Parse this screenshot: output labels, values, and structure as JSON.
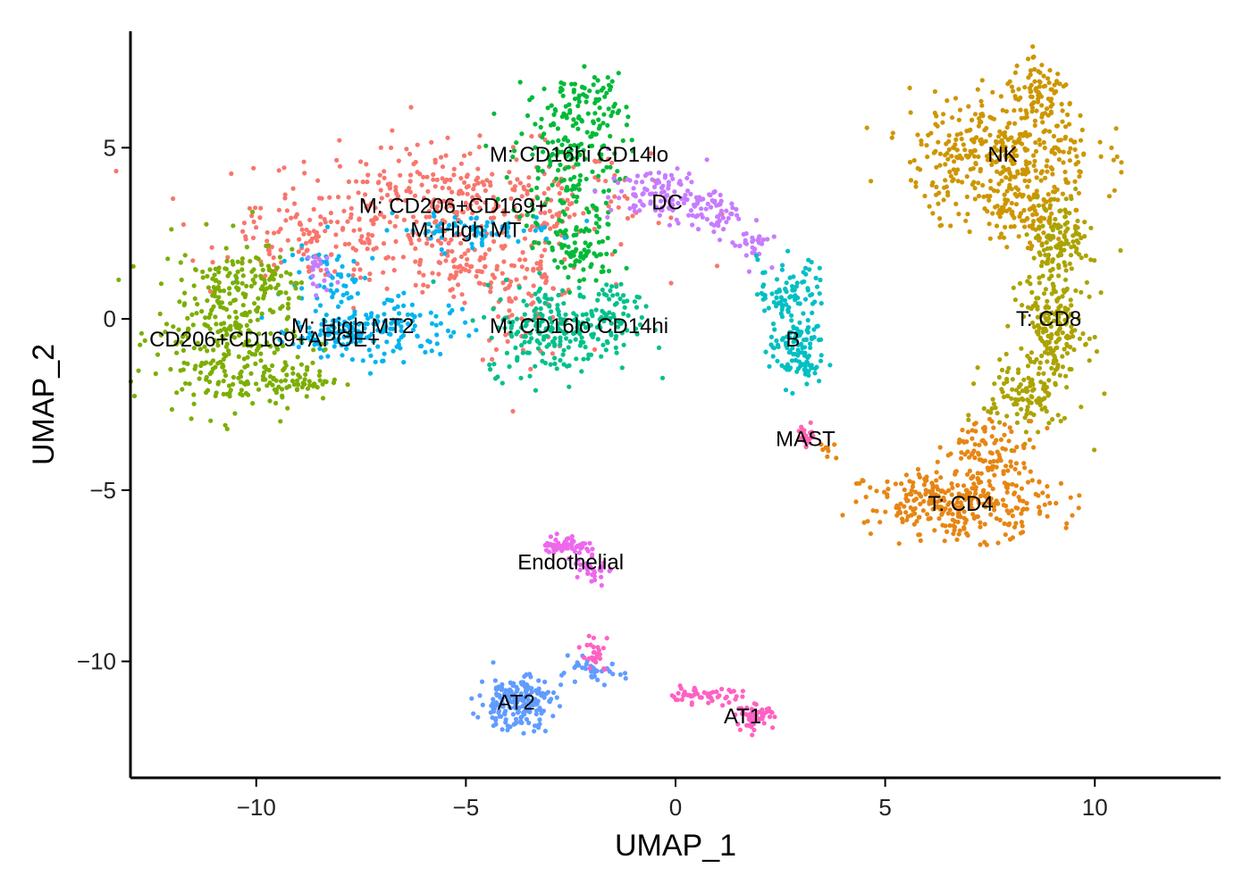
{
  "chart_data": {
    "type": "scatter",
    "title": "",
    "xlabel": "UMAP_1",
    "ylabel": "UMAP_2",
    "xlim": [
      -13,
      13
    ],
    "ylim": [
      -13.4,
      8.4
    ],
    "xticks": [
      -10,
      -5,
      0,
      5,
      10
    ],
    "xtick_labels": [
      "−10",
      "−5",
      "0",
      "5",
      "10"
    ],
    "yticks": [
      5,
      0,
      -5,
      -10
    ],
    "ytick_labels": [
      "5",
      "0",
      "−5",
      "−10"
    ],
    "grid": false,
    "legend": "none",
    "clusters": [
      {
        "label": "M: CD206+CD169+",
        "color": "#F8766D",
        "label_pos": [
          -5.3,
          3.3
        ],
        "regions": [
          [
            -5.3,
            3.3,
            4.2,
            1.6,
            400
          ],
          [
            -8.6,
            2.2,
            2.0,
            1.0,
            90
          ],
          [
            -3.5,
            0.4,
            1.2,
            1.4,
            70
          ],
          [
            -5.0,
            1.3,
            2.0,
            0.8,
            80
          ]
        ]
      },
      {
        "label": "M: CD16hi CD14lo",
        "color": "#00BA38",
        "label_pos": [
          -2.3,
          4.8
        ],
        "regions": [
          [
            -2.6,
            4.8,
            1.2,
            2.0,
            180
          ],
          [
            -2.3,
            2.0,
            0.9,
            1.0,
            90
          ],
          [
            -2.0,
            6.5,
            0.7,
            0.6,
            50
          ]
        ]
      },
      {
        "label": "M: High MT",
        "color": "#00B4F0",
        "label_pos": [
          -5.0,
          2.6
        ],
        "regions": [
          [
            -5.0,
            2.6,
            2.0,
            0.4,
            70
          ],
          [
            -8.0,
            1.0,
            1.2,
            1.0,
            60
          ],
          [
            -6.3,
            -0.3,
            1.4,
            0.8,
            70
          ],
          [
            -8.4,
            -0.6,
            1.0,
            0.4,
            40
          ]
        ]
      },
      {
        "label": "M: High MT2",
        "color": "#00B4F0",
        "label_pos": [
          -7.7,
          -0.2
        ],
        "regions": [
          [
            -7.7,
            -0.4,
            1.2,
            0.6,
            90
          ]
        ]
      },
      {
        "label": "CD206+CD169+APOE+",
        "color": "#7CAE00",
        "label_pos": [
          -9.8,
          -0.6
        ],
        "regions": [
          [
            -10.8,
            -0.4,
            1.5,
            2.2,
            300
          ],
          [
            -9.3,
            -1.8,
            1.2,
            0.5,
            80
          ],
          [
            -10.0,
            1.2,
            1.0,
            0.8,
            60
          ]
        ]
      },
      {
        "label": "M: CD16lo CD14hi",
        "color": "#00C08B",
        "label_pos": [
          -2.3,
          -0.2
        ],
        "regions": [
          [
            -2.8,
            -0.3,
            1.6,
            1.2,
            230
          ],
          [
            -1.5,
            0.4,
            0.6,
            0.6,
            40
          ]
        ]
      },
      {
        "label": "DC",
        "color": "#C77CFF",
        "label_pos": [
          -0.2,
          3.4
        ],
        "regions": [
          [
            -0.3,
            3.6,
            1.2,
            0.7,
            120
          ],
          [
            1.0,
            3.0,
            0.6,
            0.5,
            40
          ],
          [
            1.8,
            2.2,
            0.4,
            0.5,
            30
          ],
          [
            -8.6,
            1.4,
            0.3,
            0.6,
            20
          ]
        ]
      },
      {
        "label": "B",
        "color": "#00BFC4",
        "label_pos": [
          2.8,
          -0.6
        ],
        "regions": [
          [
            2.9,
            -0.9,
            0.6,
            1.0,
            120
          ],
          [
            2.5,
            0.8,
            0.5,
            0.9,
            60
          ],
          [
            3.2,
            1.0,
            0.3,
            0.6,
            20
          ]
        ]
      },
      {
        "label": "MAST",
        "color": "#FF64B0",
        "label_pos": [
          3.1,
          -3.5
        ],
        "regions": [
          [
            3.15,
            -3.4,
            0.2,
            0.3,
            25
          ]
        ]
      },
      {
        "label": "NK",
        "color": "#CD9600",
        "label_pos": [
          7.8,
          4.8
        ],
        "regions": [
          [
            7.8,
            4.8,
            2.0,
            1.6,
            380
          ],
          [
            8.7,
            6.5,
            0.8,
            0.8,
            80
          ],
          [
            8.3,
            3.0,
            1.0,
            0.8,
            90
          ]
        ]
      },
      {
        "label": "T: CD8",
        "color": "#ABA300",
        "label_pos": [
          8.9,
          0.0
        ],
        "regions": [
          [
            9.0,
            0.0,
            0.7,
            2.3,
            260
          ],
          [
            9.2,
            2.5,
            0.6,
            1.0,
            70
          ],
          [
            8.2,
            -2.3,
            0.8,
            1.0,
            90
          ]
        ]
      },
      {
        "label": "T: CD4",
        "color": "#E68613",
        "label_pos": [
          6.8,
          -5.4
        ],
        "regions": [
          [
            6.8,
            -5.4,
            2.0,
            0.9,
            320
          ],
          [
            7.5,
            -3.8,
            1.0,
            0.8,
            90
          ],
          [
            3.6,
            -3.8,
            0.2,
            0.3,
            8
          ]
        ]
      },
      {
        "label": "Endothelial",
        "color": "#ED68ED",
        "label_pos": [
          -2.5,
          -7.1
        ],
        "regions": [
          [
            -2.6,
            -6.6,
            0.5,
            0.25,
            60
          ],
          [
            -2.0,
            -7.3,
            0.4,
            0.4,
            30
          ]
        ]
      },
      {
        "label": "AT2",
        "color": "#619CFF",
        "label_pos": [
          -3.8,
          -11.2
        ],
        "regions": [
          [
            -3.8,
            -11.2,
            0.8,
            0.7,
            200
          ],
          [
            -2.0,
            -10.3,
            0.7,
            0.3,
            40
          ]
        ]
      },
      {
        "label": "AT1",
        "color": "#FF61C3",
        "label_pos": [
          1.6,
          -11.6
        ],
        "regions": [
          [
            0.6,
            -11.0,
            0.9,
            0.2,
            50
          ],
          [
            1.9,
            -11.6,
            0.4,
            0.3,
            60
          ],
          [
            -1.9,
            -9.8,
            0.3,
            0.5,
            25
          ]
        ]
      }
    ]
  }
}
